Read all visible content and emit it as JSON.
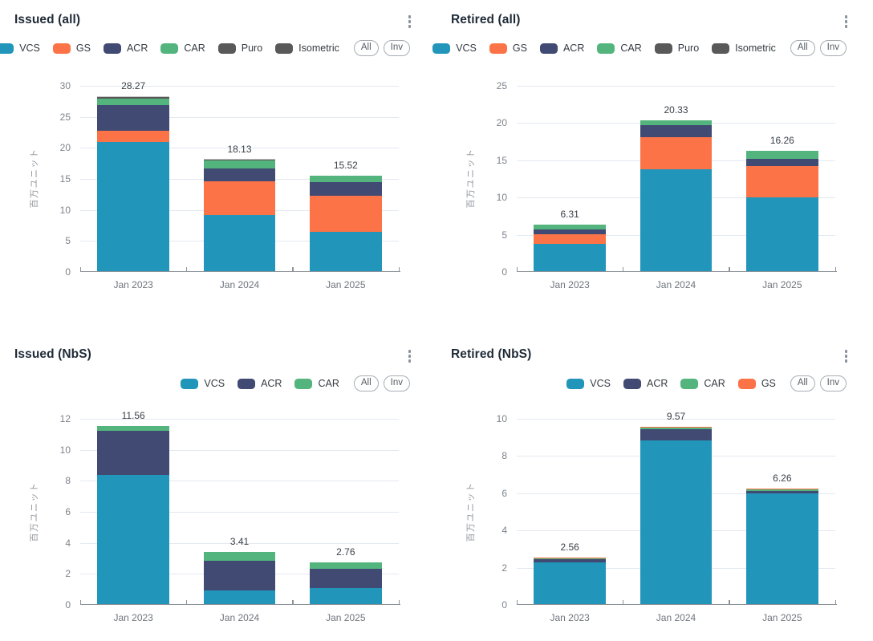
{
  "page": {
    "background": "#ffffff"
  },
  "ylabel": "百万ユニット",
  "palette": {
    "VCS": "#2196ba",
    "GS": "#fb7347",
    "ACR": "#404a73",
    "CAR": "#53b57d",
    "Puro": "#595959",
    "Isometric": "#595959"
  },
  "controls": {
    "all_label": "All",
    "inv_label": "Inv"
  },
  "charts": [
    {
      "title": "Issued (all)",
      "chart_data": {
        "type": "bar",
        "stacked": true,
        "title": "Issued (all)",
        "ylabel": "百万ユニット",
        "categories": [
          "Jan 2023",
          "Jan 2024",
          "Jan 2025"
        ],
        "series": [
          {
            "name": "VCS",
            "values": [
              20.96,
              9.19,
              6.42
            ]
          },
          {
            "name": "GS",
            "values": [
              1.74,
              5.38,
              5.9
            ]
          },
          {
            "name": "ACR",
            "values": [
              4.25,
              2.16,
              2.13
            ]
          },
          {
            "name": "CAR",
            "values": [
              1.05,
              1.25,
              1.07
            ]
          },
          {
            "name": "Puro",
            "values": [
              0.15,
              0.08,
              0
            ]
          },
          {
            "name": "Isometric",
            "values": [
              0.12,
              0.07,
              0
            ]
          }
        ],
        "totals": [
          28.27,
          18.13,
          15.52
        ],
        "ylim": [
          0,
          30
        ],
        "ytick_step": 5,
        "grid": true,
        "legend_position": "top-right"
      }
    },
    {
      "title": "Retired (all)",
      "chart_data": {
        "type": "bar",
        "stacked": true,
        "title": "Retired (all)",
        "ylabel": "百万ユニット",
        "categories": [
          "Jan 2023",
          "Jan 2024",
          "Jan 2025"
        ],
        "series": [
          {
            "name": "VCS",
            "values": [
              3.75,
              13.8,
              10.07
            ]
          },
          {
            "name": "GS",
            "values": [
              1.27,
              4.3,
              4.13
            ]
          },
          {
            "name": "ACR",
            "values": [
              0.73,
              1.6,
              1.0
            ]
          },
          {
            "name": "CAR",
            "values": [
              0.56,
              0.63,
              1.06
            ]
          },
          {
            "name": "Puro",
            "values": [
              0,
              0,
              0
            ]
          },
          {
            "name": "Isometric",
            "values": [
              0,
              0,
              0
            ]
          }
        ],
        "totals": [
          6.31,
          20.33,
          16.26
        ],
        "ylim": [
          0,
          25
        ],
        "ytick_step": 5,
        "grid": true,
        "legend_position": "top-right"
      }
    },
    {
      "title": "Issued (NbS)",
      "chart_data": {
        "type": "bar",
        "stacked": true,
        "title": "Issued (NbS)",
        "ylabel": "百万ユニット",
        "categories": [
          "Jan 2023",
          "Jan 2024",
          "Jan 2025"
        ],
        "series": [
          {
            "name": "VCS",
            "values": [
              8.38,
              0.95,
              1.08
            ]
          },
          {
            "name": "ACR",
            "values": [
              2.87,
              1.9,
              1.27
            ]
          },
          {
            "name": "CAR",
            "values": [
              0.31,
              0.56,
              0.41
            ]
          }
        ],
        "totals": [
          11.56,
          3.41,
          2.76
        ],
        "ylim": [
          0,
          12
        ],
        "ytick_step": 2,
        "grid": true,
        "legend_position": "top-right"
      }
    },
    {
      "title": "Retired (NbS)",
      "chart_data": {
        "type": "bar",
        "stacked": true,
        "title": "Retired (NbS)",
        "ylabel": "百万ユニット",
        "categories": [
          "Jan 2023",
          "Jan 2024",
          "Jan 2025"
        ],
        "series": [
          {
            "name": "VCS",
            "values": [
              2.3,
              8.85,
              6.0
            ]
          },
          {
            "name": "ACR",
            "values": [
              0.15,
              0.58,
              0.12
            ]
          },
          {
            "name": "CAR",
            "values": [
              0.07,
              0.1,
              0.1
            ]
          },
          {
            "name": "GS",
            "values": [
              0.04,
              0.04,
              0.04
            ]
          }
        ],
        "totals": [
          2.56,
          9.57,
          6.26
        ],
        "ylim": [
          0,
          10
        ],
        "ytick_step": 2,
        "grid": true,
        "legend_position": "top-right"
      }
    }
  ]
}
